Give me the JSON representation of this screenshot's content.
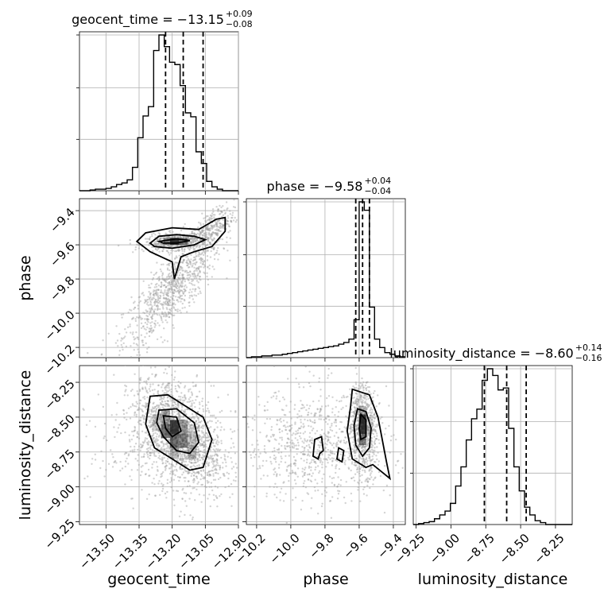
{
  "chart_data": {
    "type": "corner",
    "parameters": [
      "geocent_time",
      "phase",
      "luminosity_distance"
    ],
    "axis_labels": {
      "x": [
        "geocent_time",
        "phase",
        "luminosity_distance"
      ],
      "y": [
        "phase",
        "luminosity_distance"
      ]
    },
    "ranges": {
      "geocent_time": [
        -13.62,
        -12.9
      ],
      "phase": [
        -10.26,
        -9.33
      ],
      "luminosity_distance": [
        -9.27,
        -8.13
      ]
    },
    "ticks": {
      "geocent_time": {
        "values": [
          -13.5,
          -13.35,
          -13.2,
          -13.05,
          -12.9
        ],
        "labels": [
          "−13.50",
          "−13.35",
          "−13.20",
          "−13.05",
          "−12.90"
        ]
      },
      "phase": {
        "values": [
          -10.2,
          -10.0,
          -9.8,
          -9.6,
          -9.4
        ],
        "labels": [
          "−10.2",
          "−10.0",
          "−9.8",
          "−9.6",
          "−9.4"
        ]
      },
      "luminosity_distance": {
        "values": [
          -9.25,
          -9.0,
          -8.75,
          -8.5,
          -8.25
        ],
        "labels": [
          "−9.25",
          "−9.00",
          "−8.75",
          "−8.50",
          "−8.25"
        ]
      }
    },
    "titles": [
      {
        "param": "geocent_time",
        "main": "geocent_time = −13.15",
        "plus": "+0.09",
        "minus": "−0.08"
      },
      {
        "param": "phase",
        "main": "phase = −9.58",
        "plus": "+0.04",
        "minus": "−0.04"
      },
      {
        "param": "luminosity_distance",
        "main": "luminosity_distance = −8.60",
        "plus": "+0.14",
        "minus": "−0.16"
      }
    ],
    "quantiles": {
      "geocent_time": [
        -13.23,
        -13.15,
        -13.06
      ],
      "phase": [
        -9.62,
        -9.58,
        -9.54
      ],
      "luminosity_distance": [
        -8.76,
        -8.6,
        -8.46
      ]
    },
    "histograms": {
      "geocent_time": {
        "edges": [
          -13.62,
          -13.596,
          -13.572,
          -13.548,
          -13.524,
          -13.5,
          -13.476,
          -13.452,
          -13.428,
          -13.404,
          -13.38,
          -13.356,
          -13.332,
          -13.308,
          -13.284,
          -13.26,
          -13.236,
          -13.212,
          -13.188,
          -13.164,
          -13.14,
          -13.116,
          -13.092,
          -13.068,
          -13.044,
          -13.02,
          -12.996,
          -12.972,
          -12.948,
          -12.924,
          -12.9
        ],
        "counts": [
          0,
          0,
          1,
          2,
          2,
          3,
          5,
          8,
          10,
          14,
          30,
          68,
          96,
          108,
          180,
          200,
          185,
          165,
          162,
          135,
          100,
          95,
          50,
          35,
          12,
          5,
          2,
          0,
          0,
          0
        ]
      },
      "phase": {
        "edges": [
          -10.26,
          -10.23,
          -10.2,
          -10.17,
          -10.14,
          -10.11,
          -10.08,
          -10.05,
          -10.02,
          -9.99,
          -9.96,
          -9.93,
          -9.9,
          -9.87,
          -9.84,
          -9.81,
          -9.78,
          -9.75,
          -9.72,
          -9.69,
          -9.66,
          -9.63,
          -9.6,
          -9.57,
          -9.54,
          -9.51,
          -9.48,
          -9.45,
          -9.42,
          -9.39,
          -9.36,
          -9.33
        ],
        "counts": [
          0,
          1,
          1,
          2,
          2,
          3,
          3,
          4,
          5,
          6,
          7,
          8,
          9,
          10,
          11,
          12,
          13,
          14,
          16,
          18,
          22,
          45,
          185,
          175,
          60,
          22,
          12,
          6,
          4,
          2,
          1
        ]
      },
      "luminosity_distance": {
        "edges": [
          -9.27,
          -9.232,
          -9.194,
          -9.156,
          -9.118,
          -9.08,
          -9.042,
          -9.004,
          -8.966,
          -8.928,
          -8.89,
          -8.852,
          -8.814,
          -8.776,
          -8.738,
          -8.7,
          -8.662,
          -8.624,
          -8.586,
          -8.548,
          -8.51,
          -8.472,
          -8.434,
          -8.396,
          -8.358,
          -8.32,
          -8.282,
          -8.244,
          -8.206,
          -8.168,
          -8.13
        ],
        "counts": [
          0,
          1,
          2,
          3,
          6,
          10,
          14,
          22,
          40,
          60,
          88,
          110,
          120,
          150,
          162,
          155,
          140,
          142,
          100,
          60,
          35,
          18,
          10,
          4,
          2,
          0,
          0,
          0,
          0,
          0
        ]
      }
    },
    "grid": true,
    "scatter_color": "#9e9e9e",
    "density_color": "#000000",
    "contour_color": "#000000",
    "quantile_line_style": "dashed"
  }
}
